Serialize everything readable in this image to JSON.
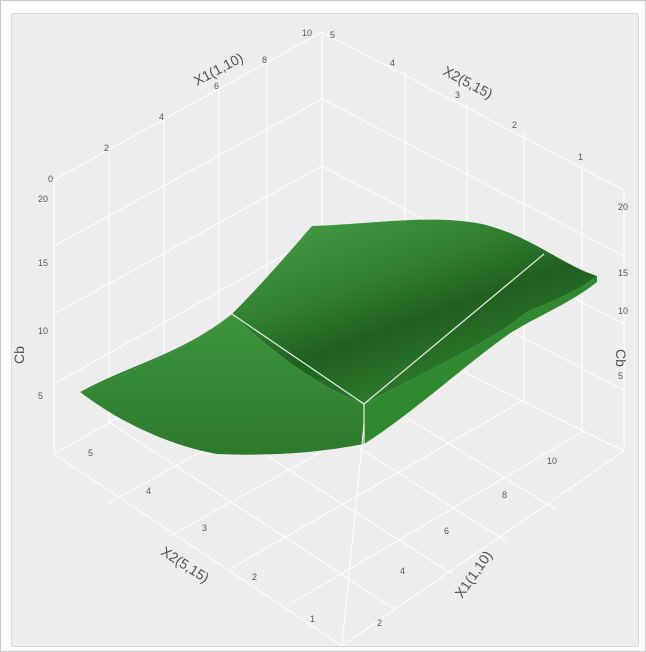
{
  "chart_data": {
    "type": "surface3d",
    "title": "",
    "axes": {
      "x1": {
        "label": "X1(1,10)",
        "ticks": [
          "0",
          "2",
          "4",
          "6",
          "8",
          "10"
        ],
        "ticks_front": [
          "10",
          "8",
          "6",
          "4",
          "2"
        ]
      },
      "x2": {
        "label": "X2(5,15)",
        "ticks": [
          "5",
          "4",
          "3",
          "2",
          "1"
        ],
        "ticks_front": [
          "1",
          "2",
          "3",
          "4",
          "5"
        ]
      },
      "cb": {
        "label": "Cb",
        "ticks": [
          "5",
          "10",
          "15",
          "20"
        ],
        "range": [
          0,
          20
        ]
      }
    },
    "surface": {
      "color": "#3f9a3f",
      "dark_color": "#1f5f1f",
      "edge_color": "#e8f2e8",
      "corner_values": {
        "x1_min_x2_min": 5,
        "x1_max_x2_min": 15,
        "x1_min_x2_max": 20,
        "x1_max_x2_max": 0
      },
      "shape": "sigmoidal ridge"
    },
    "grid": true,
    "background": "#ededed"
  }
}
